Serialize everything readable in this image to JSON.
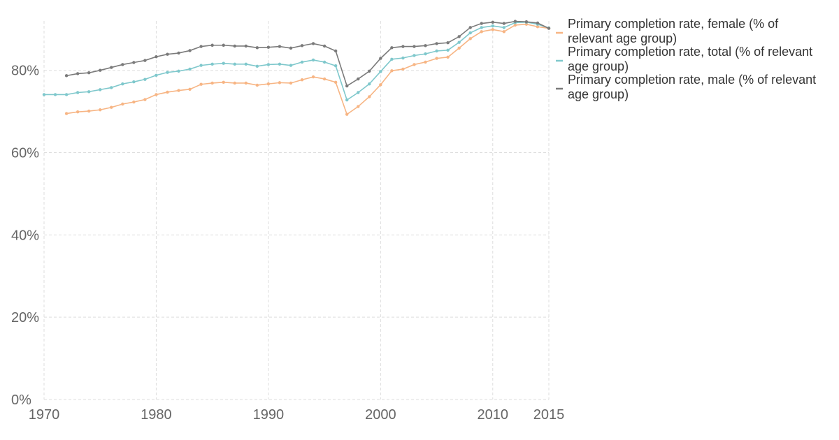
{
  "chart_data": {
    "type": "line",
    "title": "",
    "xlabel": "",
    "ylabel": "",
    "xlim": [
      1970,
      2015
    ],
    "ylim": [
      0,
      92
    ],
    "x_ticks": [
      1970,
      1980,
      1990,
      2000,
      2010,
      2015
    ],
    "x_tick_labels": [
      "1970",
      "1980",
      "1990",
      "2000",
      "2010",
      "2015"
    ],
    "y_ticks": [
      0,
      20,
      40,
      60,
      80
    ],
    "y_tick_labels": [
      "0%",
      "20%",
      "40%",
      "60%",
      "80%"
    ],
    "grid": true,
    "legend_position": "top-right",
    "series": [
      {
        "name": "Primary completion rate, female (% of relevant age group)",
        "color": "#f7b584",
        "points": [
          [
            1972,
            69.5
          ],
          [
            1973,
            69.9
          ],
          [
            1974,
            70.1
          ],
          [
            1975,
            70.4
          ],
          [
            1976,
            71.0
          ],
          [
            1977,
            71.8
          ],
          [
            1978,
            72.3
          ],
          [
            1979,
            72.9
          ],
          [
            1980,
            74.1
          ],
          [
            1981,
            74.7
          ],
          [
            1982,
            75.1
          ],
          [
            1983,
            75.4
          ],
          [
            1984,
            76.6
          ],
          [
            1985,
            76.9
          ],
          [
            1986,
            77.1
          ],
          [
            1987,
            76.9
          ],
          [
            1988,
            76.9
          ],
          [
            1989,
            76.4
          ],
          [
            1990,
            76.7
          ],
          [
            1991,
            77.0
          ],
          [
            1992,
            76.9
          ],
          [
            1993,
            77.7
          ],
          [
            1994,
            78.4
          ],
          [
            1995,
            77.9
          ],
          [
            1996,
            77.1
          ],
          [
            1997,
            69.3
          ],
          [
            1998,
            71.2
          ],
          [
            1999,
            73.6
          ],
          [
            2000,
            76.5
          ],
          [
            2001,
            79.9
          ],
          [
            2002,
            80.3
          ],
          [
            2003,
            81.4
          ],
          [
            2004,
            82.0
          ],
          [
            2005,
            82.9
          ],
          [
            2006,
            83.2
          ],
          [
            2007,
            85.4
          ],
          [
            2008,
            87.7
          ],
          [
            2009,
            89.4
          ],
          [
            2010,
            89.9
          ],
          [
            2011,
            89.4
          ],
          [
            2012,
            91.0
          ],
          [
            2013,
            91.2
          ],
          [
            2014,
            90.6
          ],
          [
            2015,
            90.2
          ]
        ]
      },
      {
        "name": "Primary completion rate, total (% of relevant age group)",
        "color": "#7fc8cc",
        "points": [
          [
            1970,
            74.1
          ],
          [
            1971,
            74.1
          ],
          [
            1972,
            74.1
          ],
          [
            1973,
            74.6
          ],
          [
            1974,
            74.8
          ],
          [
            1975,
            75.3
          ],
          [
            1976,
            75.8
          ],
          [
            1977,
            76.7
          ],
          [
            1978,
            77.2
          ],
          [
            1979,
            77.8
          ],
          [
            1980,
            78.8
          ],
          [
            1981,
            79.5
          ],
          [
            1982,
            79.8
          ],
          [
            1983,
            80.3
          ],
          [
            1984,
            81.2
          ],
          [
            1985,
            81.5
          ],
          [
            1986,
            81.7
          ],
          [
            1987,
            81.5
          ],
          [
            1988,
            81.5
          ],
          [
            1989,
            81.0
          ],
          [
            1990,
            81.4
          ],
          [
            1991,
            81.5
          ],
          [
            1992,
            81.2
          ],
          [
            1993,
            82.0
          ],
          [
            1994,
            82.5
          ],
          [
            1995,
            82.0
          ],
          [
            1996,
            81.1
          ],
          [
            1997,
            72.8
          ],
          [
            1998,
            74.6
          ],
          [
            1999,
            76.7
          ],
          [
            2000,
            79.7
          ],
          [
            2001,
            82.7
          ],
          [
            2002,
            83.0
          ],
          [
            2003,
            83.6
          ],
          [
            2004,
            84.0
          ],
          [
            2005,
            84.7
          ],
          [
            2006,
            84.9
          ],
          [
            2007,
            86.8
          ],
          [
            2008,
            89.1
          ],
          [
            2009,
            90.4
          ],
          [
            2010,
            90.8
          ],
          [
            2011,
            90.4
          ],
          [
            2012,
            91.6
          ],
          [
            2013,
            91.7
          ],
          [
            2014,
            91.2
          ],
          [
            2015,
            90.3
          ]
        ]
      },
      {
        "name": "Primary completion rate, male (% of relevant age group)",
        "color": "#7a7a7a",
        "points": [
          [
            1972,
            78.7
          ],
          [
            1973,
            79.2
          ],
          [
            1974,
            79.4
          ],
          [
            1975,
            80.0
          ],
          [
            1976,
            80.7
          ],
          [
            1977,
            81.4
          ],
          [
            1978,
            81.9
          ],
          [
            1979,
            82.4
          ],
          [
            1980,
            83.3
          ],
          [
            1981,
            83.9
          ],
          [
            1982,
            84.2
          ],
          [
            1983,
            84.8
          ],
          [
            1984,
            85.8
          ],
          [
            1985,
            86.1
          ],
          [
            1986,
            86.1
          ],
          [
            1987,
            85.9
          ],
          [
            1988,
            85.9
          ],
          [
            1989,
            85.5
          ],
          [
            1990,
            85.6
          ],
          [
            1991,
            85.8
          ],
          [
            1992,
            85.4
          ],
          [
            1993,
            86.0
          ],
          [
            1994,
            86.5
          ],
          [
            1995,
            85.9
          ],
          [
            1996,
            84.7
          ],
          [
            1997,
            76.2
          ],
          [
            1998,
            77.9
          ],
          [
            1999,
            79.8
          ],
          [
            2000,
            82.9
          ],
          [
            2001,
            85.5
          ],
          [
            2002,
            85.8
          ],
          [
            2003,
            85.8
          ],
          [
            2004,
            86.0
          ],
          [
            2005,
            86.5
          ],
          [
            2006,
            86.7
          ],
          [
            2007,
            88.2
          ],
          [
            2008,
            90.4
          ],
          [
            2009,
            91.4
          ],
          [
            2010,
            91.7
          ],
          [
            2011,
            91.4
          ],
          [
            2012,
            91.9
          ],
          [
            2013,
            91.8
          ],
          [
            2014,
            91.5
          ],
          [
            2015,
            90.2
          ]
        ]
      }
    ]
  }
}
